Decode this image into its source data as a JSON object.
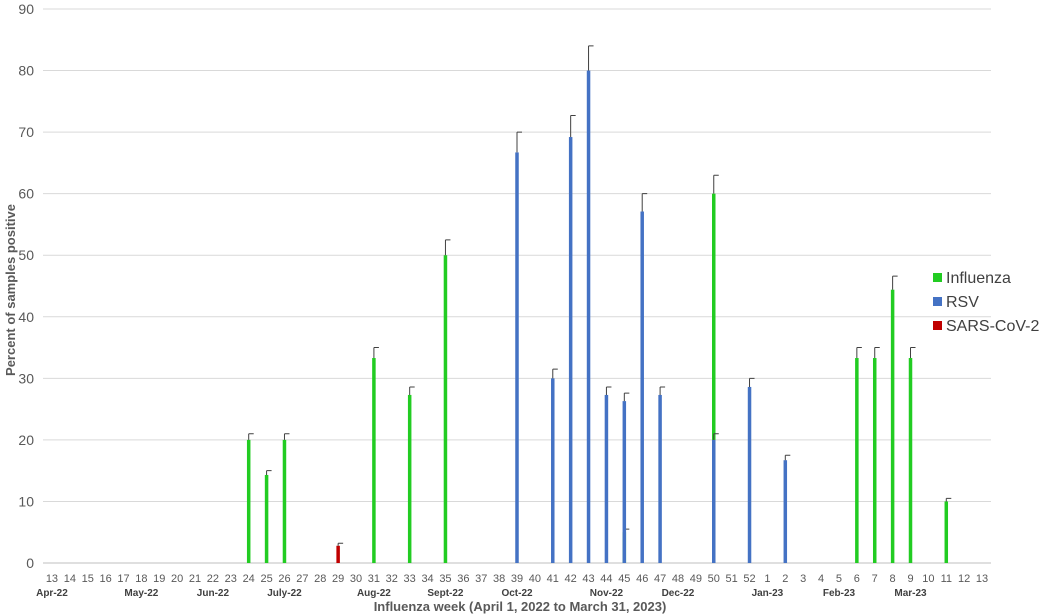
{
  "chart_data": {
    "type": "bar",
    "ylabel": "Percent of samples positive",
    "xlabel": "Influenza week (April 1, 2022 to March 31, 2023)",
    "ylim": [
      0,
      90
    ],
    "yticks": [
      0,
      10,
      20,
      30,
      40,
      50,
      60,
      70,
      80,
      90
    ],
    "grid": true,
    "legend_position": "right",
    "categories": [
      "13",
      "14",
      "15",
      "16",
      "17",
      "18",
      "19",
      "20",
      "21",
      "22",
      "23",
      "24",
      "25",
      "26",
      "27",
      "28",
      "29",
      "30",
      "31",
      "32",
      "33",
      "34",
      "35",
      "36",
      "37",
      "38",
      "39",
      "40",
      "41",
      "42",
      "43",
      "44",
      "45",
      "46",
      "47",
      "48",
      "49",
      "50",
      "51",
      "52",
      "1",
      "2",
      "3",
      "4",
      "5",
      "6",
      "7",
      "8",
      "9",
      "10",
      "11",
      "12",
      "13"
    ],
    "months": [
      {
        "label": "Apr-22",
        "at": "13"
      },
      {
        "label": "May-22",
        "at": "18"
      },
      {
        "label": "Jun-22",
        "at": "22"
      },
      {
        "label": "July-22",
        "at": "26"
      },
      {
        "label": "Aug-22",
        "at": "31"
      },
      {
        "label": "Sept-22",
        "at": "35"
      },
      {
        "label": "Oct-22",
        "at": "39"
      },
      {
        "label": "Nov-22",
        "at": "44"
      },
      {
        "label": "Dec-22",
        "at": "48"
      },
      {
        "label": "Jan-23",
        "at": "1"
      },
      {
        "label": "Feb-23",
        "at": "5"
      },
      {
        "label": "Mar-23",
        "at": "9"
      }
    ],
    "series": [
      {
        "name": "Influenza",
        "color": "#22cc22",
        "points": [
          {
            "index": 11,
            "value": 20.0,
            "error": 1.0
          },
          {
            "index": 12,
            "value": 14.3,
            "error": 0.7
          },
          {
            "index": 13,
            "value": 20.0,
            "error": 1.0
          },
          {
            "index": 18,
            "value": 33.3,
            "error": 1.7
          },
          {
            "index": 20,
            "value": 27.3,
            "error": 1.3
          },
          {
            "index": 22,
            "value": 50.0,
            "error": 2.5
          },
          {
            "index": 32,
            "value": 5.0,
            "error": 0.5
          },
          {
            "index": 37,
            "value": 60.0,
            "error": 3.0
          },
          {
            "index": 45,
            "value": 33.3,
            "error": 1.7
          },
          {
            "index": 46,
            "value": 33.3,
            "error": 1.7
          },
          {
            "index": 47,
            "value": 44.4,
            "error": 2.2
          },
          {
            "index": 48,
            "value": 33.3,
            "error": 1.7
          },
          {
            "index": 50,
            "value": 10.0,
            "error": 0.5
          }
        ]
      },
      {
        "name": "RSV",
        "color": "#4472c4",
        "points": [
          {
            "index": 26,
            "value": 66.7,
            "error": 3.3
          },
          {
            "index": 28,
            "value": 30.0,
            "error": 1.5
          },
          {
            "index": 29,
            "value": 69.2,
            "error": 3.5
          },
          {
            "index": 30,
            "value": 80.0,
            "error": 4.0
          },
          {
            "index": 31,
            "value": 27.3,
            "error": 1.3
          },
          {
            "index": 32,
            "value": 26.3,
            "error": 1.3
          },
          {
            "index": 33,
            "value": 57.1,
            "error": 2.9
          },
          {
            "index": 34,
            "value": 27.3,
            "error": 1.3
          },
          {
            "index": 37,
            "value": 20.0,
            "error": 1.0
          },
          {
            "index": 39,
            "value": 28.6,
            "error": 1.4
          },
          {
            "index": 41,
            "value": 16.7,
            "error": 0.8
          }
        ]
      },
      {
        "name": "SARS-CoV-2",
        "color": "#c00000",
        "points": [
          {
            "index": 16,
            "value": 2.8,
            "error": 0.4
          }
        ]
      }
    ]
  }
}
